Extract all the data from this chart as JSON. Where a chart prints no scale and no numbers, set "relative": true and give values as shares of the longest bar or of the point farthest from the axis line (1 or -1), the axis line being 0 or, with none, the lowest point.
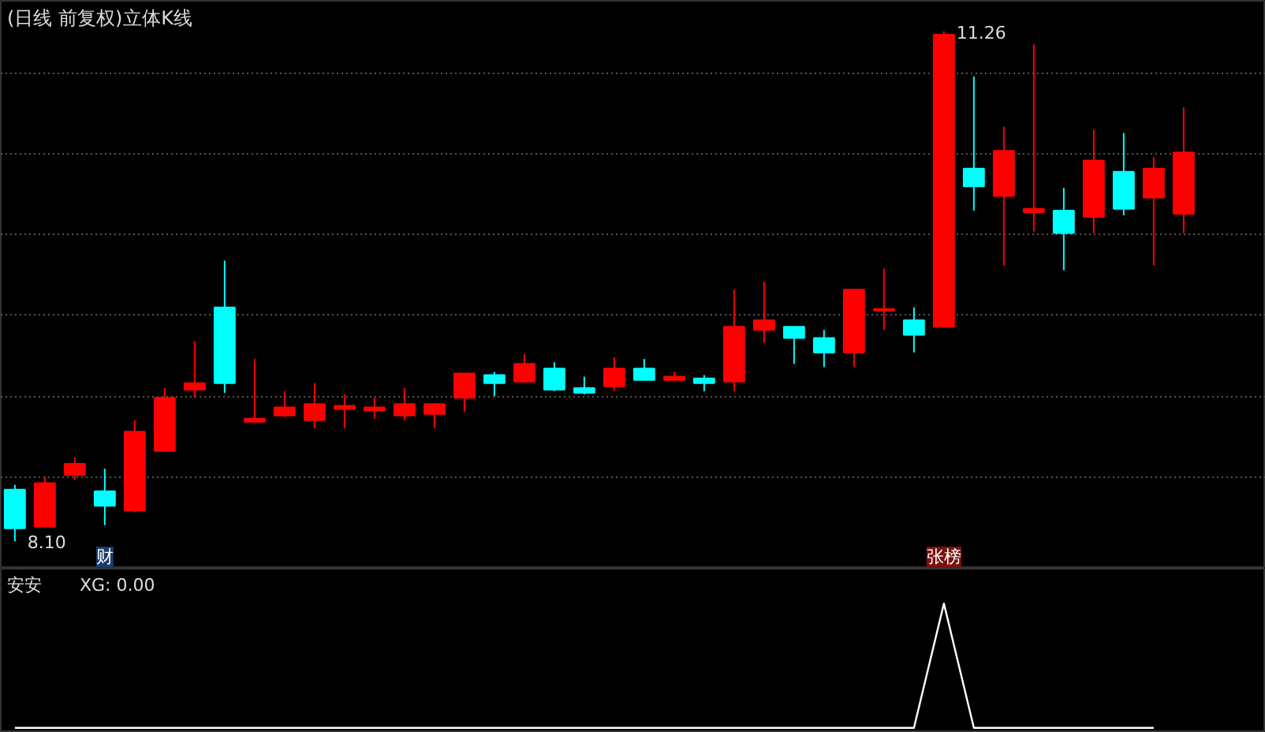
{
  "chart_data": [
    {
      "type": "candlestick",
      "title": "(日线 前复权)",
      "subtitle": "立体K线",
      "categories": [
        null,
        null,
        null,
        null,
        null,
        null,
        null,
        null,
        null,
        null,
        null,
        null,
        null,
        null,
        null,
        null,
        null,
        null,
        null,
        null,
        null,
        null,
        null,
        null,
        null,
        null,
        null,
        null,
        null,
        null,
        null,
        null,
        null,
        null,
        null,
        null,
        null,
        null,
        null,
        null
      ],
      "ohlc": [
        [
          8.42,
          8.45,
          8.1,
          8.18
        ],
        [
          8.19,
          8.5,
          8.19,
          8.46
        ],
        [
          8.51,
          8.62,
          8.48,
          8.58
        ],
        [
          8.41,
          8.55,
          8.2,
          8.32
        ],
        [
          8.29,
          8.85,
          8.28,
          8.78
        ],
        [
          8.66,
          9.05,
          8.66,
          8.99
        ],
        [
          9.04,
          9.34,
          8.99,
          9.08
        ],
        [
          9.55,
          9.84,
          9.02,
          9.08
        ],
        [
          8.84,
          9.23,
          8.84,
          8.86
        ],
        [
          8.88,
          9.03,
          8.87,
          8.93
        ],
        [
          8.85,
          9.08,
          8.8,
          8.95
        ],
        [
          8.92,
          9.01,
          8.8,
          8.94
        ],
        [
          8.91,
          8.99,
          8.86,
          8.93
        ],
        [
          8.88,
          9.05,
          8.85,
          8.95
        ],
        [
          8.89,
          8.95,
          8.8,
          8.95
        ],
        [
          8.99,
          9.14,
          8.9,
          9.14
        ],
        [
          9.13,
          9.15,
          9.0,
          9.08
        ],
        [
          9.09,
          9.26,
          9.08,
          9.2
        ],
        [
          9.17,
          9.21,
          9.03,
          9.04
        ],
        [
          9.05,
          9.12,
          9.01,
          9.02
        ],
        [
          9.06,
          9.24,
          9.03,
          9.17
        ],
        [
          9.17,
          9.23,
          9.1,
          9.1
        ],
        [
          9.1,
          9.15,
          9.1,
          9.12
        ],
        [
          9.11,
          9.13,
          9.03,
          9.08
        ],
        [
          9.09,
          9.66,
          9.03,
          9.43
        ],
        [
          9.41,
          9.71,
          9.33,
          9.47
        ],
        [
          9.43,
          9.43,
          9.2,
          9.36
        ],
        [
          9.36,
          9.41,
          9.18,
          9.27
        ],
        [
          9.27,
          9.66,
          9.18,
          9.66
        ],
        [
          9.53,
          9.79,
          9.41,
          9.54
        ],
        [
          9.47,
          9.55,
          9.27,
          9.38
        ],
        [
          9.43,
          11.26,
          9.43,
          11.24
        ],
        [
          10.41,
          10.98,
          10.15,
          10.3
        ],
        [
          10.24,
          10.67,
          9.81,
          10.52
        ],
        [
          10.14,
          11.18,
          10.02,
          10.16
        ],
        [
          10.15,
          10.29,
          9.78,
          10.01
        ],
        [
          10.11,
          10.65,
          10.01,
          10.46
        ],
        [
          10.39,
          10.63,
          10.12,
          10.16
        ],
        [
          10.23,
          10.48,
          9.81,
          10.41
        ],
        [
          10.13,
          10.79,
          10.01,
          10.51
        ]
      ],
      "colors": [
        "#00ffff",
        "#ff0000",
        "#ff0000",
        "#00ffff",
        "#ff0000",
        "#ff0000",
        "#ff0000",
        "#00ffff",
        "#ff0000",
        "#ff0000",
        "#ff0000",
        "#ff0000",
        "#ff0000",
        "#ff0000",
        "#ff0000",
        "#ff0000",
        "#00ffff",
        "#ff0000",
        "#00ffff",
        "#00ffff",
        "#ff0000",
        "#00ffff",
        "#ff0000",
        "#00ffff",
        "#ff0000",
        "#ff0000",
        "#00ffff",
        "#00ffff",
        "#ff0000",
        "#ff0000",
        "#00ffff",
        "#ff0000",
        "#00ffff",
        "#ff0000",
        "#ff0000",
        "#00ffff",
        "#ff0000",
        "#00ffff",
        "#ff0000",
        "#ff0000"
      ],
      "ylim": [
        7.93,
        11.45
      ],
      "yticks": [
        {
          "value": 8.5,
          "label": null
        },
        {
          "value": 9.0,
          "label": null
        },
        {
          "value": 9.5,
          "label": null
        },
        {
          "value": 10.0,
          "label": null
        },
        {
          "value": 10.5,
          "label": null
        },
        {
          "value": 11.0,
          "label": null
        }
      ],
      "tick_labels": false,
      "grid": "y",
      "annotations": [
        "8.10",
        "11.26",
        "财",
        "张榜"
      ]
    },
    {
      "type": "line",
      "title": "安安",
      "annotations": [
        "XG: 0.00"
      ],
      "relative": true,
      "categories": [
        null,
        null,
        null,
        null,
        null,
        null,
        null,
        null,
        null,
        null,
        null,
        null,
        null,
        null,
        null,
        null,
        null,
        null,
        null,
        null,
        null,
        null,
        null,
        null,
        null,
        null,
        null,
        null,
        null,
        null,
        null,
        null,
        null,
        null,
        null,
        null,
        null,
        null,
        null,
        null
      ],
      "series": [
        {
          "color": "#ffffff",
          "values": [
            0,
            0,
            0,
            0,
            0,
            0,
            0,
            0,
            0,
            0,
            0,
            0,
            0,
            0,
            0,
            0,
            0,
            0,
            0,
            0,
            0,
            0,
            0,
            0,
            0,
            0,
            0,
            0,
            0,
            0,
            0,
            1,
            0,
            0,
            0,
            0,
            0,
            0,
            0,
            null
          ]
        }
      ]
    }
  ]
}
